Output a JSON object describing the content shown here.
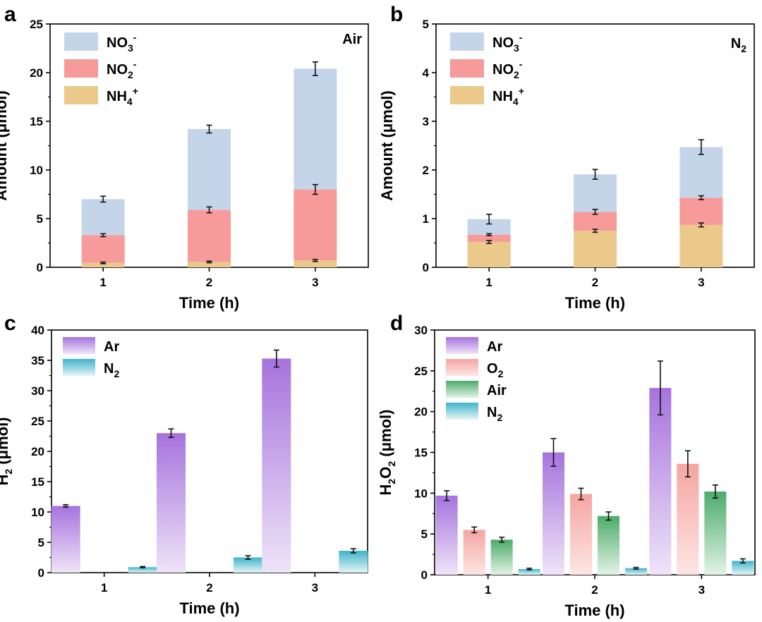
{
  "colors": {
    "nitrate": "#c4d5ea",
    "nitrite": "#f79a9a",
    "ammonium": "#ebc98a",
    "ar_top": "#a673dd",
    "ar_bottom": "#efe4f8",
    "n2_top": "#3fb4c9",
    "n2_bottom": "#e4f5f8",
    "o2_top": "#f5a5a1",
    "o2_bottom": "#fde6e4",
    "air_top": "#4cac69",
    "air_bottom": "#e3f3e7",
    "axis": "#000000",
    "errorbar": "#111111"
  },
  "chart_data": [
    {
      "panel": "a",
      "type": "stacked-bar",
      "condition_label": "Air",
      "categories": [
        "1",
        "2",
        "3"
      ],
      "xlabel": "Time (h)",
      "ylabel": "Amount (μmol)",
      "ylim": [
        0,
        25
      ],
      "yticks": [
        "0",
        "5",
        "10",
        "15",
        "20",
        "25"
      ],
      "series": [
        {
          "name": "NH4+",
          "label_main": "NH",
          "label_sub": "4",
          "label_sup": "+",
          "color_key": "ammonium",
          "values": [
            0.45,
            0.55,
            0.7
          ],
          "errors": [
            0.08,
            0.08,
            0.1
          ]
        },
        {
          "name": "NO2-",
          "label_main": "NO",
          "label_sub": "2",
          "label_sup": "-",
          "color_key": "nitrite",
          "values": [
            2.85,
            5.35,
            7.3
          ],
          "errors": [
            0.15,
            0.3,
            0.5
          ]
        },
        {
          "name": "NO3-",
          "label_main": "NO",
          "label_sub": "3",
          "label_sup": "-",
          "color_key": "nitrate",
          "values": [
            3.7,
            8.3,
            12.4
          ],
          "errors": [
            0.3,
            0.4,
            0.7
          ]
        }
      ],
      "legend_order": [
        2,
        1,
        0
      ]
    },
    {
      "panel": "b",
      "type": "stacked-bar",
      "condition_label_main": "N",
      "condition_label_sub": "2",
      "categories": [
        "1",
        "2",
        "3"
      ],
      "xlabel": "Time (h)",
      "ylabel": "Amount (μmol)",
      "ylim": [
        0,
        5
      ],
      "yticks": [
        "0",
        "1",
        "2",
        "3",
        "4",
        "5"
      ],
      "series": [
        {
          "name": "NH4+",
          "label_main": "NH",
          "label_sub": "4",
          "label_sup": "+",
          "color_key": "ammonium",
          "values": [
            0.52,
            0.75,
            0.87
          ],
          "errors": [
            0.03,
            0.03,
            0.04
          ]
        },
        {
          "name": "NO2-",
          "label_main": "NO",
          "label_sub": "2",
          "label_sup": "-",
          "color_key": "nitrite",
          "values": [
            0.15,
            0.39,
            0.56
          ],
          "errors": [
            0.02,
            0.05,
            0.04
          ]
        },
        {
          "name": "NO3-",
          "label_main": "NO",
          "label_sub": "3",
          "label_sup": "-",
          "color_key": "nitrate",
          "values": [
            0.32,
            0.77,
            1.04
          ],
          "errors": [
            0.1,
            0.1,
            0.15
          ]
        }
      ],
      "legend_order": [
        2,
        1,
        0
      ]
    },
    {
      "panel": "c",
      "type": "bar",
      "categories": [
        "1",
        "2",
        "3"
      ],
      "xlabel": "Time (h)",
      "ylabel_main": "H",
      "ylabel_sub": "2",
      "ylabel_rest": " (μmol)",
      "ylim": [
        0,
        40
      ],
      "yticks": [
        "0",
        "5",
        "10",
        "15",
        "20",
        "25",
        "30",
        "35",
        "40"
      ],
      "series": [
        {
          "name": "Ar",
          "label_main": "Ar",
          "label_sub": "",
          "top": "ar_top",
          "bottom": "ar_bottom",
          "values": [
            11.0,
            23.0,
            35.3
          ],
          "errors": [
            0.2,
            0.7,
            1.4
          ]
        },
        {
          "name": "N2",
          "label_main": "N",
          "label_sub": "2",
          "top": "n2_top",
          "bottom": "n2_bottom",
          "values": [
            0.9,
            2.5,
            3.6
          ],
          "errors": [
            0.1,
            0.3,
            0.35
          ]
        }
      ]
    },
    {
      "panel": "d",
      "type": "bar",
      "categories": [
        "1",
        "2",
        "3"
      ],
      "xlabel": "Time (h)",
      "ylabel_main": "H",
      "ylabel_sub": "2",
      "ylabel_main2": "O",
      "ylabel_sub2": "2",
      "ylabel_rest": " (μmol)",
      "ylim": [
        0,
        30
      ],
      "yticks": [
        "0",
        "5",
        "10",
        "15",
        "20",
        "25",
        "30"
      ],
      "series": [
        {
          "name": "Ar",
          "label_main": "Ar",
          "label_sub": "",
          "top": "ar_top",
          "bottom": "ar_bottom",
          "values": [
            9.7,
            15.0,
            22.9
          ],
          "errors": [
            0.6,
            1.7,
            3.3
          ]
        },
        {
          "name": "O2",
          "label_main": "O",
          "label_sub": "2",
          "top": "o2_top",
          "bottom": "o2_bottom",
          "values": [
            5.5,
            9.9,
            13.6
          ],
          "errors": [
            0.35,
            0.7,
            1.6
          ]
        },
        {
          "name": "Air",
          "label_main": "Air",
          "label_sub": "",
          "top": "air_top",
          "bottom": "air_bottom",
          "values": [
            4.3,
            7.2,
            10.2
          ],
          "errors": [
            0.3,
            0.5,
            0.8
          ]
        },
        {
          "name": "N2",
          "label_main": "N",
          "label_sub": "2",
          "top": "n2_top",
          "bottom": "n2_bottom",
          "values": [
            0.7,
            0.8,
            1.7
          ],
          "errors": [
            0.1,
            0.1,
            0.25
          ]
        }
      ]
    }
  ]
}
